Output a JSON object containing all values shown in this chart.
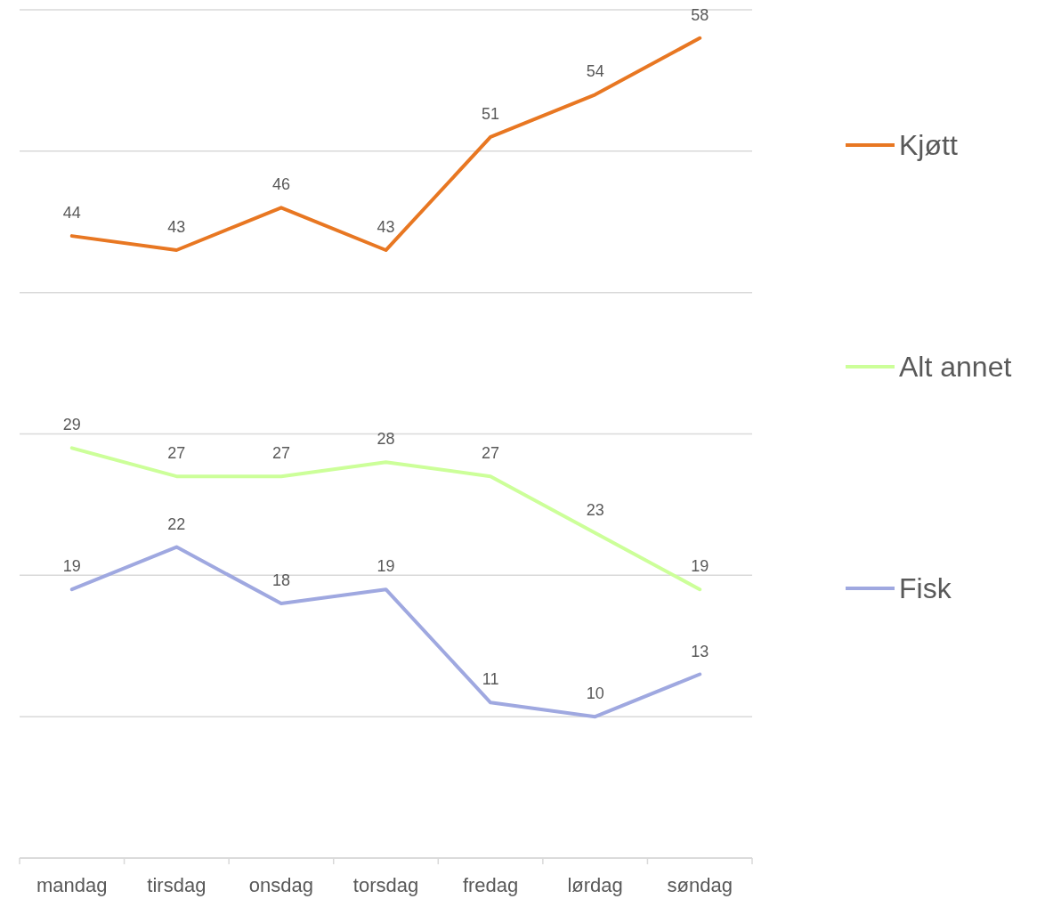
{
  "chart_data": {
    "type": "line",
    "categories": [
      "mandag",
      "tirsdag",
      "onsdag",
      "torsdag",
      "fredag",
      "lørdag",
      "søndag"
    ],
    "series": [
      {
        "name": "Kjøtt",
        "color": "#e87722",
        "values": [
          44,
          43,
          46,
          43,
          51,
          54,
          58
        ]
      },
      {
        "name": "Alt annet",
        "color": "#ccff99",
        "values": [
          29,
          27,
          27,
          28,
          27,
          23,
          19
        ]
      },
      {
        "name": "Fisk",
        "color": "#9fa8e0",
        "values": [
          19,
          22,
          18,
          19,
          11,
          10,
          13
        ]
      }
    ],
    "ylim": [
      0,
      60
    ],
    "yticks": [
      {
        "value": 0,
        "label": null
      },
      {
        "value": 10,
        "label": null
      },
      {
        "value": 20,
        "label": null
      },
      {
        "value": 30,
        "label": null
      },
      {
        "value": 40,
        "label": null
      },
      {
        "value": 50,
        "label": null
      },
      {
        "value": 60,
        "label": null
      }
    ],
    "tick_labels": "x",
    "grid": "y",
    "legend": "right",
    "data_labels": true,
    "marker": "none",
    "line_style": "solid"
  }
}
